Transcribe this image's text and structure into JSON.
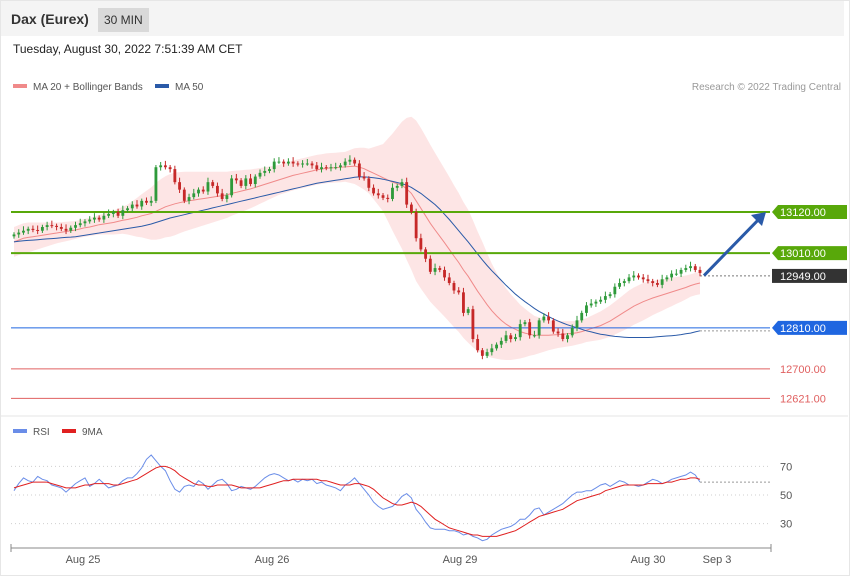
{
  "header": {
    "title": "Dax (Eurex)",
    "timeframe": "30 MIN"
  },
  "datetime": "Tuesday, August 30, 2022 7:51:39 AM CET",
  "legend": {
    "ma20_label": "MA 20 + Bollinger Bands",
    "ma50_label": "MA 50",
    "credit": "Research © 2022 Trading Central",
    "rsi_label": "RSI",
    "rsi_ma_label": "9MA"
  },
  "colors": {
    "up": "#2e9a3a",
    "down": "#c62828",
    "ma20": "#f08a8a",
    "bb_fill": "#fde0e0",
    "ma50": "#2a5aa8",
    "resistance": "#58a80a",
    "support_blue": "#1f66e0",
    "support_red": "#e06060",
    "rsi": "#6a8de8",
    "rsi_ma": "#e02020",
    "arrow": "#2a5aa8"
  },
  "chart_data": [
    {
      "type": "candlestick",
      "name": "price",
      "ylim": [
        12590,
        13420
      ],
      "x_ticks": [
        "Aug 25",
        "Aug 26",
        "Aug 29",
        "Aug 30",
        "Sep 3"
      ],
      "levels": [
        {
          "value": 13120,
          "label": "13120.00",
          "kind": "resistance"
        },
        {
          "value": 13010,
          "label": "13010.00",
          "kind": "resistance"
        },
        {
          "value": 12949,
          "label": "12949.00",
          "kind": "current"
        },
        {
          "value": 12810,
          "label": "12810.00",
          "kind": "support_blue"
        },
        {
          "value": 12700,
          "label": "12700.00",
          "kind": "support_red"
        },
        {
          "value": 12621,
          "label": "12621.00",
          "kind": "support_red"
        }
      ],
      "projection": {
        "from": 12950,
        "to": 13120
      },
      "close": [
        13060,
        13065,
        13070,
        13075,
        13072,
        13070,
        13080,
        13085,
        13083,
        13080,
        13075,
        13070,
        13078,
        13085,
        13090,
        13095,
        13100,
        13105,
        13100,
        13110,
        13115,
        13120,
        13110,
        13125,
        13130,
        13140,
        13135,
        13150,
        13145,
        13150,
        13240,
        13245,
        13240,
        13235,
        13200,
        13180,
        13150,
        13160,
        13170,
        13180,
        13175,
        13200,
        13190,
        13170,
        13155,
        13165,
        13210,
        13205,
        13190,
        13210,
        13195,
        13215,
        13225,
        13230,
        13235,
        13255,
        13255,
        13250,
        13255,
        13250,
        13248,
        13250,
        13250,
        13245,
        13235,
        13240,
        13238,
        13240,
        13240,
        13245,
        13255,
        13260,
        13250,
        13215,
        13210,
        13185,
        13170,
        13165,
        13158,
        13155,
        13185,
        13190,
        13200,
        13140,
        13120,
        13050,
        13020,
        12995,
        12960,
        12970,
        12965,
        12945,
        12930,
        12910,
        12905,
        12850,
        12860,
        12780,
        12750,
        12735,
        12745,
        12755,
        12765,
        12775,
        12790,
        12780,
        12785,
        12820,
        12825,
        12790,
        12790,
        12830,
        12840,
        12830,
        12800,
        12795,
        12780,
        12790,
        12810,
        12830,
        12850,
        12870,
        12875,
        12880,
        12885,
        12895,
        12900,
        12920,
        12930,
        12935,
        12945,
        12950,
        12945,
        12940,
        12935,
        12930,
        12925,
        12940,
        12945,
        12955,
        12955,
        12965,
        12970,
        12975,
        12965,
        12957
      ],
      "ma20": [
        13040,
        13045,
        13050,
        13052,
        13054,
        13056,
        13058,
        13060,
        13062,
        13064,
        13066,
        13068,
        13070,
        13072,
        13075,
        13078,
        13080,
        13083,
        13086,
        13088,
        13090,
        13092,
        13095,
        13098,
        13100,
        13103,
        13106,
        13110,
        13113,
        13116,
        13122,
        13128,
        13134,
        13138,
        13142,
        13145,
        13148,
        13150,
        13152,
        13154,
        13156,
        13158,
        13160,
        13162,
        13164,
        13166,
        13170,
        13173,
        13176,
        13179,
        13182,
        13186,
        13190,
        13194,
        13198,
        13202,
        13206,
        13210,
        13214,
        13218,
        13221,
        13224,
        13227,
        13230,
        13233,
        13235,
        13237,
        13238,
        13239,
        13240,
        13241,
        13242,
        13243,
        13240,
        13236,
        13230,
        13224,
        13218,
        13212,
        13206,
        13200,
        13196,
        13192,
        13182,
        13170,
        13150,
        13130,
        13110,
        13090,
        13072,
        13055,
        13038,
        13020,
        13002,
        12985,
        12965,
        12948,
        12928,
        12908,
        12890,
        12872,
        12856,
        12842,
        12830,
        12820,
        12812,
        12806,
        12800,
        12796,
        12793,
        12790,
        12790,
        12790,
        12790,
        12791,
        12792,
        12793,
        12794,
        12795,
        12797,
        12800,
        12804,
        12808,
        12812,
        12816,
        12822,
        12828,
        12836,
        12844,
        12852,
        12860,
        12868,
        12874,
        12880,
        12885,
        12890,
        12894,
        12898,
        12902,
        12906,
        12910,
        12914,
        12918,
        12923,
        12927,
        12930
      ],
      "ma50": [
        13040,
        13042,
        13043,
        13044,
        13045,
        13046,
        13047,
        13048,
        13049,
        13050,
        13051,
        13052,
        13053,
        13054,
        13056,
        13058,
        13060,
        13062,
        13064,
        13066,
        13068,
        13070,
        13072,
        13074,
        13076,
        13078,
        13080,
        13082,
        13085,
        13088,
        13092,
        13096,
        13100,
        13104,
        13107,
        13110,
        13113,
        13116,
        13119,
        13122,
        13125,
        13128,
        13131,
        13134,
        13137,
        13140,
        13143,
        13146,
        13149,
        13152,
        13155,
        13158,
        13161,
        13164,
        13167,
        13170,
        13173,
        13176,
        13179,
        13182,
        13185,
        13188,
        13191,
        13194,
        13197,
        13199,
        13201,
        13203,
        13205,
        13207,
        13209,
        13211,
        13213,
        13214,
        13214,
        13213,
        13212,
        13210,
        13208,
        13205,
        13202,
        13199,
        13196,
        13192,
        13186,
        13178,
        13170,
        13160,
        13150,
        13140,
        13128,
        13114,
        13100,
        13085,
        13070,
        13055,
        13040,
        13024,
        13008,
        12992,
        12977,
        12963,
        12950,
        12937,
        12924,
        12912,
        12900,
        12890,
        12880,
        12871,
        12862,
        12854,
        12847,
        12840,
        12834,
        12828,
        12823,
        12818,
        12814,
        12810,
        12806,
        12802,
        12799,
        12796,
        12793,
        12791,
        12789,
        12787,
        12786,
        12785,
        12784,
        12784,
        12784,
        12784,
        12784,
        12785,
        12786,
        12787,
        12788,
        12789,
        12790,
        12792,
        12794,
        12796,
        12799,
        12802
      ],
      "bb_width": [
        40,
        40,
        40,
        40,
        38,
        36,
        34,
        32,
        30,
        28,
        27,
        26,
        25,
        24,
        24,
        24,
        24,
        25,
        26,
        28,
        30,
        32,
        34,
        36,
        40,
        46,
        52,
        58,
        64,
        70,
        76,
        80,
        82,
        84,
        84,
        82,
        80,
        78,
        76,
        74,
        72,
        70,
        68,
        66,
        64,
        62,
        60,
        58,
        56,
        54,
        52,
        50,
        48,
        46,
        44,
        42,
        40,
        40,
        40,
        40,
        40,
        40,
        40,
        40,
        40,
        40,
        40,
        40,
        40,
        40,
        40,
        44,
        48,
        52,
        56,
        60,
        70,
        80,
        90,
        110,
        130,
        150,
        170,
        190,
        205,
        215,
        215,
        213,
        210,
        206,
        202,
        198,
        194,
        190,
        186,
        182,
        178,
        170,
        160,
        150,
        138,
        126,
        115,
        105,
        96,
        88,
        80,
        72,
        65,
        58,
        52,
        48,
        44,
        40,
        38,
        36,
        35,
        34,
        33,
        32,
        32,
        32,
        34,
        36,
        38,
        40,
        42,
        44,
        46,
        48,
        50,
        50,
        50,
        50,
        48,
        46,
        44,
        42,
        40,
        38,
        36,
        34,
        32,
        30,
        30,
        30
      ],
      "x_index_ticks": [
        10,
        54,
        98,
        142
      ]
    },
    {
      "type": "line",
      "name": "rsi",
      "ylim": [
        15,
        85
      ],
      "y_ticks": [
        70,
        50,
        30
      ],
      "guide": 59,
      "series": [
        {
          "name": "RSI",
          "values": [
            53,
            58,
            62,
            60,
            59,
            63,
            61,
            60,
            57,
            56,
            55,
            52,
            55,
            58,
            60,
            62,
            56,
            58,
            61,
            58,
            55,
            56,
            57,
            60,
            62,
            62,
            65,
            69,
            75,
            78,
            74,
            70,
            67,
            60,
            54,
            52,
            56,
            57,
            56,
            60,
            58,
            54,
            57,
            60,
            61,
            58,
            53,
            54,
            56,
            55,
            54,
            56,
            59,
            62,
            64,
            65,
            64,
            62,
            60,
            61,
            59,
            61,
            60,
            61,
            58,
            59,
            57,
            56,
            55,
            53,
            57,
            59,
            62,
            58,
            54,
            50,
            45,
            42,
            40,
            41,
            42,
            45,
            49,
            51,
            48,
            40,
            36,
            31,
            27,
            26,
            26,
            26,
            25,
            25,
            24,
            22,
            23,
            21,
            20,
            18,
            19,
            22,
            24,
            26,
            27,
            28,
            30,
            33,
            33,
            36,
            40,
            41,
            36,
            38,
            40,
            42,
            44,
            47,
            50,
            52,
            52,
            53,
            53,
            55,
            57,
            58,
            56,
            58,
            60,
            59,
            57,
            57,
            56,
            57,
            59,
            61,
            60,
            58,
            59,
            61,
            62,
            63,
            64,
            66,
            64,
            59
          ]
        },
        {
          "name": "9MA",
          "values": [
            55,
            56,
            57,
            58,
            59,
            59,
            59,
            59,
            58,
            57,
            56,
            55,
            55,
            55,
            56,
            57,
            57,
            58,
            58,
            58,
            58,
            57,
            57,
            58,
            59,
            60,
            61,
            63,
            65,
            67,
            69,
            70,
            70,
            69,
            67,
            64,
            62,
            60,
            58,
            57,
            57,
            56,
            56,
            57,
            57,
            57,
            57,
            56,
            55,
            55,
            55,
            55,
            55,
            56,
            57,
            58,
            59,
            60,
            60,
            61,
            61,
            61,
            61,
            61,
            61,
            60,
            60,
            59,
            58,
            57,
            57,
            57,
            58,
            58,
            57,
            56,
            54,
            51,
            48,
            46,
            44,
            43,
            43,
            44,
            45,
            44,
            42,
            39,
            36,
            33,
            31,
            29,
            27,
            26,
            25,
            24,
            23,
            22,
            22,
            21,
            21,
            21,
            21,
            22,
            23,
            24,
            25,
            27,
            29,
            31,
            33,
            35,
            36,
            37,
            38,
            39,
            40,
            42,
            44,
            46,
            47,
            48,
            49,
            50,
            51,
            53,
            54,
            55,
            56,
            57,
            57,
            57,
            57,
            57,
            58,
            58,
            58,
            58,
            59,
            59,
            60,
            61,
            61,
            62,
            62,
            61
          ]
        }
      ]
    }
  ]
}
